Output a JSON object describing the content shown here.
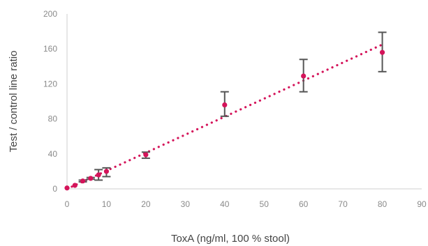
{
  "chart_data": {
    "type": "scatter",
    "xlabel": "ToxA (ng/ml, 100 % stool)",
    "ylabel": "Test / control line ratio",
    "xlim": [
      0,
      90
    ],
    "ylim": [
      0,
      200
    ],
    "xticks": [
      0,
      10,
      20,
      30,
      40,
      50,
      60,
      70,
      80,
      90
    ],
    "yticks": [
      0,
      40,
      80,
      120,
      160,
      200
    ],
    "grid": false,
    "legend": "none",
    "marker_color": "#d4145a",
    "errorbar_color": "#555555",
    "series": [
      {
        "x": [
          0,
          2,
          4,
          6,
          8,
          10,
          20,
          40,
          60,
          80
        ],
        "y": [
          1,
          4,
          9,
          12,
          16,
          20,
          39,
          96,
          129,
          156
        ],
        "err_low": [
          0,
          0,
          1,
          1,
          6,
          6,
          4,
          13,
          18,
          22
        ],
        "err_high": [
          0,
          0,
          1,
          1,
          6,
          4,
          3,
          15,
          19,
          23
        ]
      }
    ],
    "trendline": {
      "style": "dotted",
      "color": "#d4145a",
      "x": [
        0,
        80
      ],
      "y": [
        0,
        165
      ]
    }
  }
}
